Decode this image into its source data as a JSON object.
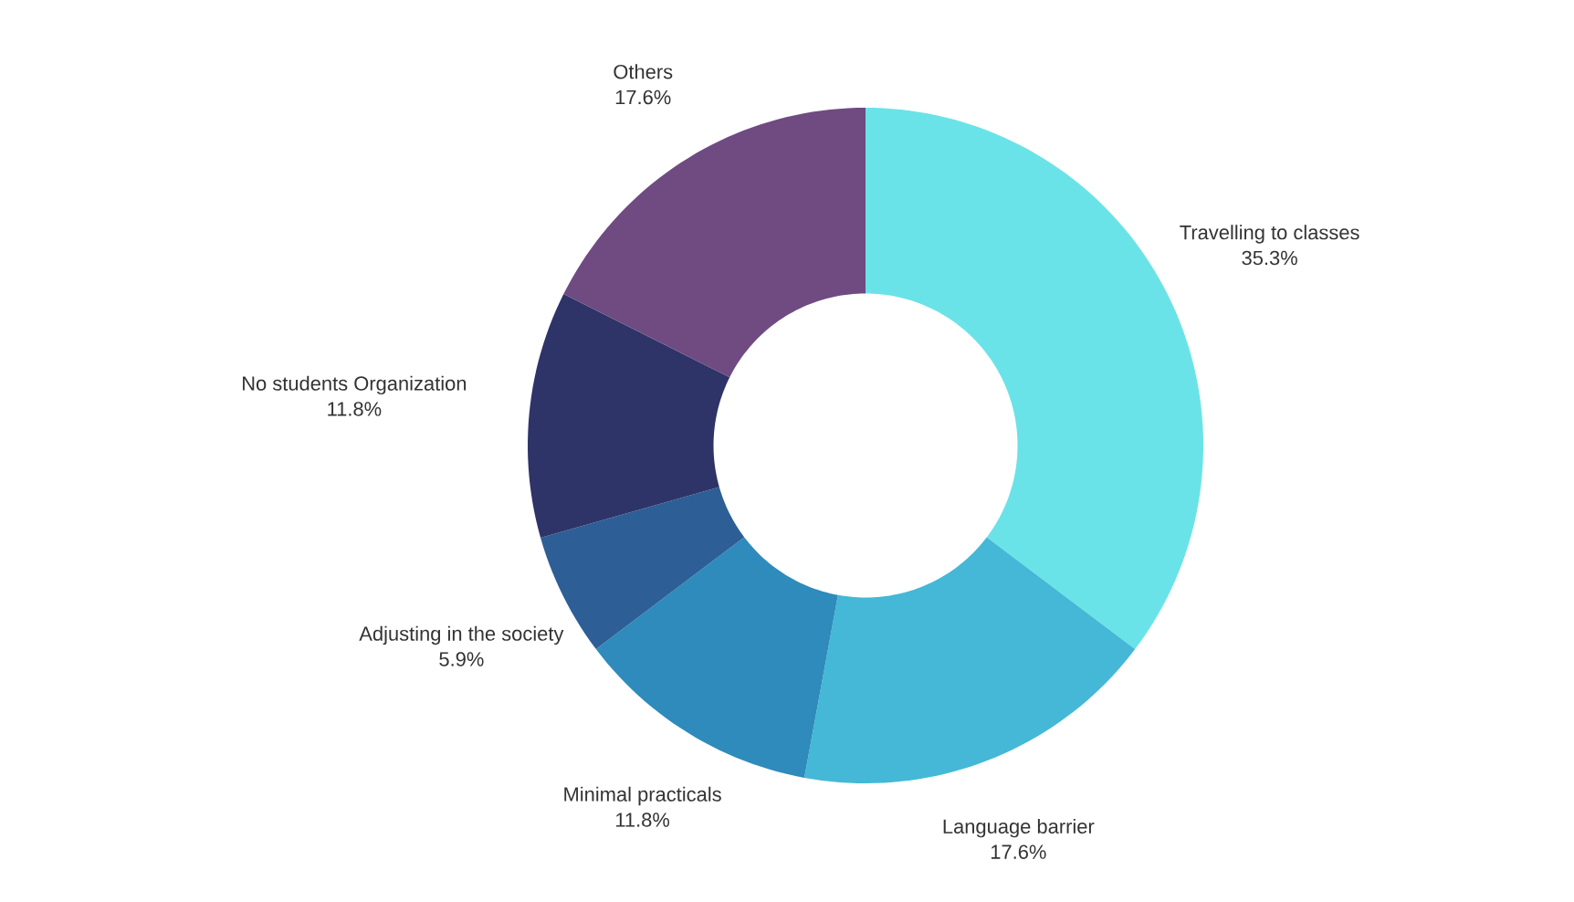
{
  "chart_data": {
    "type": "donut",
    "categories": [
      "Travelling to classes",
      "Language barrier",
      "Minimal practicals",
      "Adjusting in the society",
      "No students Organization",
      "Others"
    ],
    "values": [
      35.3,
      17.6,
      11.8,
      5.9,
      11.8,
      17.6
    ],
    "value_labels": [
      "35.3%",
      "17.6%",
      "11.8%",
      "5.9%",
      "11.8%",
      "17.6%"
    ],
    "colors": [
      "#6ae3e8",
      "#44b8d6",
      "#2e8bbb",
      "#2d5f96",
      "#2e3368",
      "#6f4b82"
    ]
  }
}
